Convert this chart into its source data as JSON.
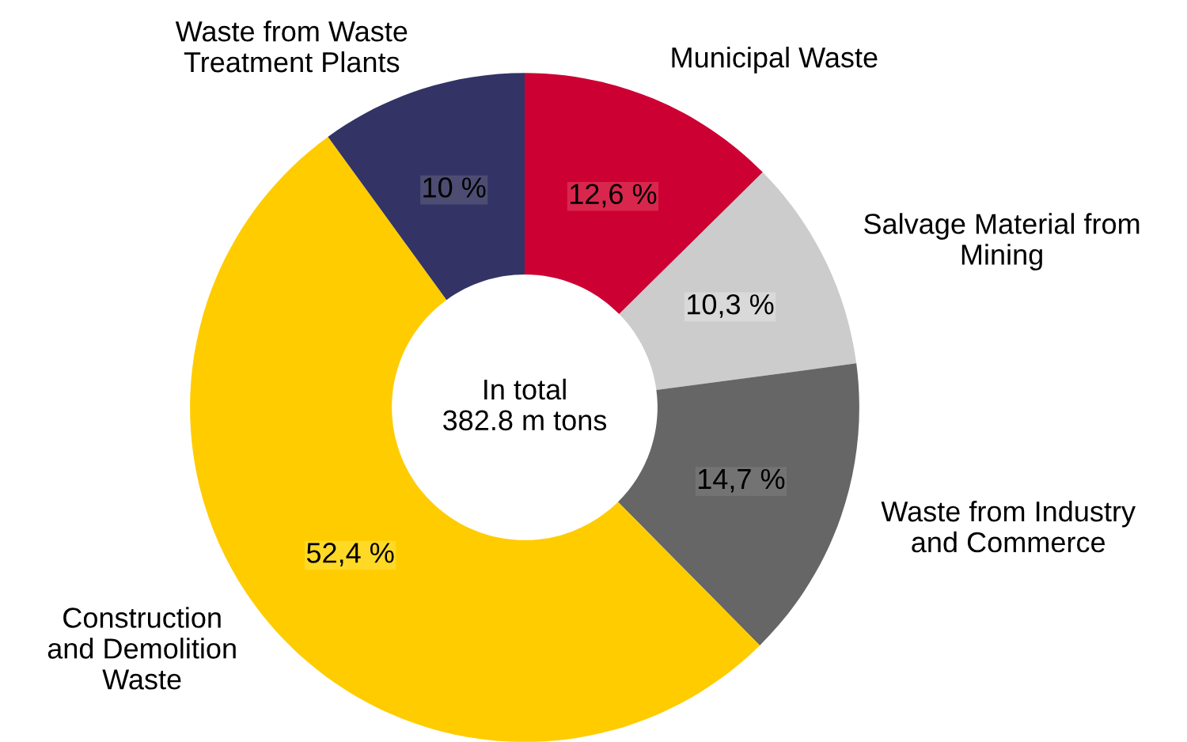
{
  "chart_data": {
    "type": "donut",
    "categories": [
      "Municipal Waste",
      "Salvage Material from\nMining",
      "Waste from Industry\nand Commerce",
      "Construction\nand Demolition\nWaste",
      "Waste from Waste\nTreatment Plants"
    ],
    "values": [
      12.6,
      10.3,
      14.7,
      52.4,
      10
    ],
    "colors": [
      "#cc0033",
      "#cccccc",
      "#666666",
      "#ffcc00",
      "#333366"
    ],
    "value_labels": [
      "12,6 %",
      "10,3 %",
      "14,7 %",
      "52,4 %",
      "10 %"
    ],
    "annotations": [
      "In total\n382.8 m tons"
    ]
  }
}
